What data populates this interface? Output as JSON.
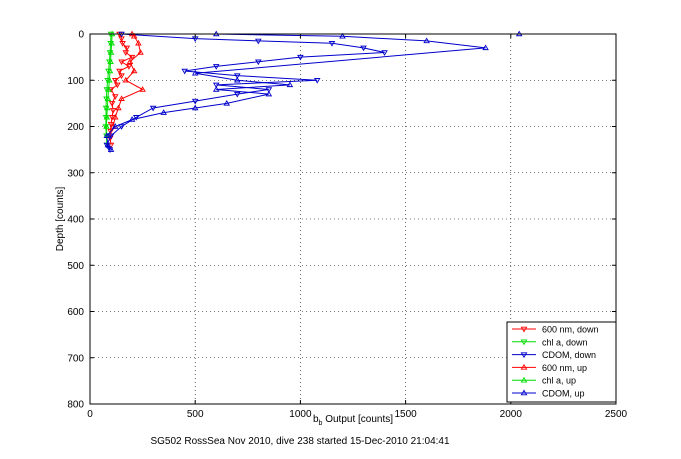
{
  "chart_data": {
    "type": "line",
    "footer": "SG502 RossSea Nov 2010, dive 238 started 15-Dec-2010 21:04:41",
    "xlabel_main": "b",
    "xlabel_sub": "b",
    "xlabel_rest": " Output [counts]",
    "ylabel": "Depth [counts]",
    "xlim": [
      0,
      2500
    ],
    "ylim": [
      0,
      800
    ],
    "y_reversed": true,
    "grid": true,
    "legend_placement": "bottom-right",
    "x_ticks": [
      "0",
      "500",
      "1000",
      "1500",
      "2000",
      "2500"
    ],
    "y_ticks": [
      "0",
      "100",
      "200",
      "300",
      "400",
      "500",
      "600",
      "700",
      "800"
    ],
    "series": [
      {
        "name": "600 nm, down",
        "color": "#ff0000",
        "marker": "triangle-down",
        "points": [
          [
            140,
            0
          ],
          [
            150,
            10
          ],
          [
            155,
            20
          ],
          [
            175,
            30
          ],
          [
            170,
            40
          ],
          [
            200,
            50
          ],
          [
            150,
            60
          ],
          [
            185,
            70
          ],
          [
            140,
            80
          ],
          [
            150,
            90
          ],
          [
            120,
            100
          ],
          [
            130,
            110
          ],
          [
            100,
            120
          ],
          [
            120,
            135
          ],
          [
            105,
            150
          ],
          [
            110,
            165
          ],
          [
            105,
            180
          ],
          [
            100,
            195
          ],
          [
            98,
            210
          ],
          [
            96,
            225
          ],
          [
            100,
            240
          ]
        ]
      },
      {
        "name": "chl a, down",
        "color": "#00dd00",
        "marker": "triangle-down",
        "points": [
          [
            100,
            0
          ],
          [
            98,
            20
          ],
          [
            95,
            40
          ],
          [
            92,
            60
          ],
          [
            88,
            80
          ],
          [
            84,
            100
          ],
          [
            80,
            120
          ],
          [
            78,
            140
          ],
          [
            76,
            160
          ],
          [
            76,
            180
          ],
          [
            75,
            200
          ],
          [
            78,
            220
          ],
          [
            80,
            240
          ]
        ]
      },
      {
        "name": "CDOM, down",
        "color": "#0000cc",
        "marker": "triangle-down",
        "points": [
          [
            150,
            0
          ],
          [
            500,
            10
          ],
          [
            800,
            15
          ],
          [
            1150,
            20
          ],
          [
            1300,
            30
          ],
          [
            1400,
            40
          ],
          [
            1000,
            50
          ],
          [
            800,
            60
          ],
          [
            600,
            70
          ],
          [
            450,
            80
          ],
          [
            700,
            90
          ],
          [
            1080,
            100
          ],
          [
            600,
            110
          ],
          [
            850,
            120
          ],
          [
            700,
            130
          ],
          [
            500,
            145
          ],
          [
            300,
            160
          ],
          [
            220,
            180
          ],
          [
            150,
            200
          ],
          [
            100,
            220
          ],
          [
            80,
            240
          ],
          [
            95,
            250
          ]
        ]
      },
      {
        "name": "600 nm, up",
        "color": "#ff0000",
        "marker": "triangle-up",
        "points": [
          [
            110,
            200
          ],
          [
            120,
            180
          ],
          [
            135,
            160
          ],
          [
            150,
            140
          ],
          [
            250,
            120
          ],
          [
            170,
            100
          ],
          [
            210,
            80
          ],
          [
            190,
            60
          ],
          [
            240,
            40
          ],
          [
            230,
            20
          ],
          [
            210,
            5
          ],
          [
            200,
            0
          ]
        ]
      },
      {
        "name": "chl a, up",
        "color": "#00dd00",
        "marker": "triangle-up",
        "points": [
          [
            80,
            220
          ],
          [
            78,
            200
          ],
          [
            80,
            180
          ],
          [
            82,
            160
          ],
          [
            85,
            140
          ],
          [
            88,
            120
          ],
          [
            92,
            100
          ],
          [
            95,
            80
          ],
          [
            98,
            60
          ],
          [
            100,
            40
          ],
          [
            103,
            20
          ],
          [
            105,
            0
          ]
        ]
      },
      {
        "name": "CDOM, up",
        "color": "#0000cc",
        "marker": "triangle-up",
        "points": [
          [
            100,
            250
          ],
          [
            85,
            240
          ],
          [
            80,
            220
          ],
          [
            120,
            200
          ],
          [
            200,
            185
          ],
          [
            350,
            170
          ],
          [
            500,
            160
          ],
          [
            650,
            150
          ],
          [
            850,
            130
          ],
          [
            600,
            120
          ],
          [
            950,
            110
          ],
          [
            700,
            100
          ],
          [
            500,
            85
          ],
          [
            1880,
            30
          ],
          [
            1600,
            15
          ],
          [
            1200,
            5
          ],
          [
            600,
            0
          ],
          [
            2040,
            0
          ]
        ]
      }
    ]
  }
}
